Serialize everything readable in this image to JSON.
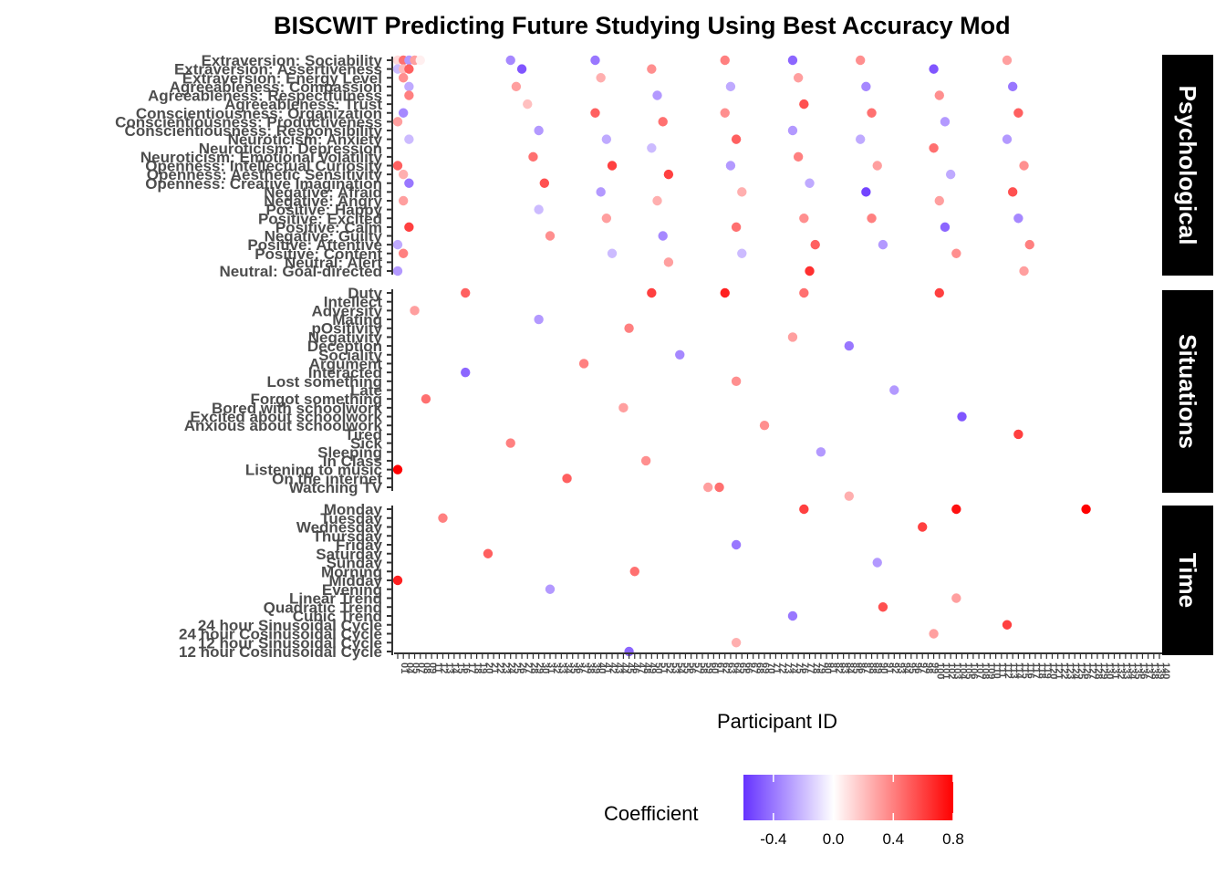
{
  "chart_data": {
    "type": "scatter",
    "title": "BISCWIT Predicting Future Studying Using Best Accuracy Mod",
    "xlabel": "Participant ID",
    "legend": {
      "title": "Coefficient",
      "ticks": [
        -0.4,
        0.0,
        0.4,
        0.8
      ],
      "range": [
        -0.6,
        0.8
      ],
      "low_color": "#6633ff",
      "mid_color": "#ffffff",
      "high_color": "#ff0000"
    },
    "x_tick_labels": [
      "01",
      "04",
      "05",
      "07",
      "08",
      "09",
      "11",
      "12",
      "13",
      "14",
      "15",
      "16",
      "17",
      "18",
      "19",
      "20",
      "21",
      "22",
      "23",
      "24",
      "25",
      "26",
      "27",
      "28",
      "29",
      "30",
      "31",
      "32",
      "33",
      "34",
      "35",
      "36",
      "37",
      "38",
      "39",
      "40",
      "41",
      "42",
      "43",
      "44",
      "45",
      "46",
      "47",
      "48",
      "49",
      "50",
      "51",
      "52",
      "53",
      "54",
      "55",
      "56",
      "57",
      "58",
      "59",
      "60",
      "61",
      "62",
      "63",
      "64",
      "65",
      "66",
      "67",
      "68",
      "69",
      "70",
      "71",
      "72",
      "73",
      "74",
      "75",
      "76",
      "77",
      "78",
      "79",
      "80",
      "81",
      "82",
      "83",
      "84",
      "85",
      "86",
      "87",
      "88",
      "89",
      "90",
      "91",
      "92",
      "93",
      "94",
      "95",
      "96",
      "97",
      "98",
      "99",
      "100",
      "101",
      "102",
      "103",
      "104",
      "105",
      "106",
      "107",
      "108",
      "109",
      "110",
      "111",
      "112",
      "113",
      "114",
      "115",
      "116",
      "117",
      "118",
      "119",
      "120",
      "121",
      "122",
      "123",
      "124",
      "125",
      "126",
      "127",
      "128",
      "129",
      "130",
      "131",
      "132",
      "133",
      "134",
      "135",
      "136",
      "137",
      "138",
      "139",
      "140"
    ],
    "facets": [
      {
        "name": "Psychological",
        "rows": [
          "Extraversion: Sociability",
          "Extraversion: Assertiveness",
          "Extraversion: Energy Level",
          "Agreeableness: Compassion",
          "Agreeableness: Respectfulness",
          "Agreeableness: Trust",
          "Conscientiousness: Organization",
          "Conscientiousness: Productiveness",
          "Conscientiousness: Responsibility",
          "Neuroticism: Anxiety",
          "Neuroticism: Depression",
          "Neuroticism: Emotional Volatility",
          "Openness: Intellectual Curiosity",
          "Openness: Aesthetic Sensitivity",
          "Openness: Creative Imagination",
          "Negative: Afraid",
          "Negative: Angry",
          "Positive: Happy",
          "Positive: Excited",
          "Positive: Calm",
          "Negative: Guilty",
          "Positive: Attentive",
          "Positive: Content",
          "Neutral: Alert",
          "Neutral: Goal-directed"
        ]
      },
      {
        "name": "Situations",
        "rows": [
          "Duty",
          "Intellect",
          "Adversity",
          "Mating",
          "pOsitivity",
          "Negativity",
          "Deception",
          "Sociality",
          "Argument",
          "Interacted",
          "Lost something",
          "Late",
          "Forgot something",
          "Bored with schoolwork",
          "Excited about schoolwork",
          "Anxious about schoolwork",
          "Tired",
          "Sick",
          "Sleeping",
          "In Class",
          "Listening to music",
          "On the internet",
          "Watching TV"
        ]
      },
      {
        "name": "Time",
        "rows": [
          "Monday",
          "Tuesday",
          "Wednesday",
          "Thursday",
          "Friday",
          "Saturday",
          "Sunday",
          "Morning",
          "Midday",
          "Evening",
          "Linear Trend",
          "Quadratic Trend",
          "Cubic Trend",
          "24 hour Sinusoidal Cycle",
          "24 hour Cosinusoidal Cycle",
          "12 hour Sinusoidal Cycle",
          "12 hour Cosinusoidal Cycle"
        ]
      }
    ],
    "points": [
      [
        0,
        0,
        0,
        0.12
      ],
      [
        0,
        0,
        1,
        0.45
      ],
      [
        0,
        0,
        2,
        -0.3
      ],
      [
        0,
        0,
        3,
        0.3
      ],
      [
        0,
        0,
        4,
        0.05
      ],
      [
        0,
        1,
        0,
        -0.2
      ],
      [
        0,
        1,
        1,
        0.22
      ],
      [
        0,
        1,
        2,
        0.5
      ],
      [
        0,
        2,
        1,
        0.35
      ],
      [
        0,
        3,
        2,
        -0.25
      ],
      [
        0,
        4,
        2,
        0.4
      ],
      [
        0,
        6,
        1,
        -0.35
      ],
      [
        0,
        7,
        0,
        0.3
      ],
      [
        0,
        9,
        2,
        -0.2
      ],
      [
        0,
        12,
        0,
        0.5
      ],
      [
        0,
        13,
        1,
        0.25
      ],
      [
        0,
        14,
        2,
        -0.4
      ],
      [
        0,
        16,
        1,
        0.3
      ],
      [
        0,
        19,
        2,
        0.6
      ],
      [
        0,
        21,
        0,
        -0.25
      ],
      [
        0,
        22,
        1,
        0.4
      ],
      [
        0,
        24,
        0,
        -0.3
      ],
      [
        0,
        0,
        20,
        -0.35
      ],
      [
        0,
        1,
        22,
        -0.5
      ],
      [
        0,
        3,
        21,
        0.3
      ],
      [
        0,
        5,
        23,
        0.2
      ],
      [
        0,
        8,
        25,
        -0.3
      ],
      [
        0,
        11,
        24,
        0.45
      ],
      [
        0,
        14,
        26,
        0.55
      ],
      [
        0,
        17,
        25,
        -0.2
      ],
      [
        0,
        20,
        27,
        0.35
      ],
      [
        0,
        0,
        35,
        -0.4
      ],
      [
        0,
        2,
        36,
        0.25
      ],
      [
        0,
        6,
        35,
        0.5
      ],
      [
        0,
        9,
        37,
        -0.25
      ],
      [
        0,
        12,
        38,
        0.6
      ],
      [
        0,
        15,
        36,
        -0.3
      ],
      [
        0,
        18,
        37,
        0.3
      ],
      [
        0,
        22,
        38,
        -0.2
      ],
      [
        0,
        1,
        45,
        0.35
      ],
      [
        0,
        4,
        46,
        -0.3
      ],
      [
        0,
        7,
        47,
        0.45
      ],
      [
        0,
        10,
        45,
        -0.2
      ],
      [
        0,
        13,
        48,
        0.6
      ],
      [
        0,
        16,
        46,
        0.25
      ],
      [
        0,
        20,
        47,
        -0.35
      ],
      [
        0,
        23,
        48,
        0.3
      ],
      [
        0,
        0,
        58,
        0.4
      ],
      [
        0,
        3,
        59,
        -0.25
      ],
      [
        0,
        6,
        58,
        0.35
      ],
      [
        0,
        9,
        60,
        0.5
      ],
      [
        0,
        12,
        59,
        -0.3
      ],
      [
        0,
        15,
        61,
        0.25
      ],
      [
        0,
        19,
        60,
        0.45
      ],
      [
        0,
        22,
        61,
        -0.2
      ],
      [
        0,
        0,
        70,
        -0.45
      ],
      [
        0,
        2,
        71,
        0.3
      ],
      [
        0,
        5,
        72,
        0.55
      ],
      [
        0,
        8,
        70,
        -0.3
      ],
      [
        0,
        11,
        71,
        0.4
      ],
      [
        0,
        14,
        73,
        -0.25
      ],
      [
        0,
        18,
        72,
        0.35
      ],
      [
        0,
        21,
        74,
        0.5
      ],
      [
        0,
        24,
        73,
        0.65
      ],
      [
        0,
        0,
        82,
        0.35
      ],
      [
        0,
        3,
        83,
        -0.35
      ],
      [
        0,
        6,
        84,
        0.45
      ],
      [
        0,
        9,
        82,
        -0.25
      ],
      [
        0,
        12,
        85,
        0.3
      ],
      [
        0,
        15,
        83,
        -0.55
      ],
      [
        0,
        18,
        84,
        0.4
      ],
      [
        0,
        21,
        86,
        -0.3
      ],
      [
        0,
        1,
        95,
        -0.5
      ],
      [
        0,
        4,
        96,
        0.35
      ],
      [
        0,
        7,
        97,
        -0.3
      ],
      [
        0,
        10,
        95,
        0.45
      ],
      [
        0,
        13,
        98,
        -0.25
      ],
      [
        0,
        16,
        96,
        0.3
      ],
      [
        0,
        19,
        97,
        -0.45
      ],
      [
        0,
        22,
        99,
        0.35
      ],
      [
        0,
        0,
        108,
        0.3
      ],
      [
        0,
        3,
        109,
        -0.4
      ],
      [
        0,
        6,
        110,
        0.5
      ],
      [
        0,
        9,
        108,
        -0.3
      ],
      [
        0,
        12,
        111,
        0.35
      ],
      [
        0,
        15,
        109,
        0.55
      ],
      [
        0,
        18,
        110,
        -0.35
      ],
      [
        0,
        21,
        112,
        0.4
      ],
      [
        0,
        24,
        111,
        0.3
      ],
      [
        1,
        0,
        12,
        0.5
      ],
      [
        1,
        0,
        45,
        0.6
      ],
      [
        1,
        0,
        58,
        0.7
      ],
      [
        1,
        0,
        72,
        0.45
      ],
      [
        1,
        0,
        96,
        0.6
      ],
      [
        1,
        2,
        3,
        0.3
      ],
      [
        1,
        3,
        25,
        -0.3
      ],
      [
        1,
        4,
        41,
        0.4
      ],
      [
        1,
        5,
        70,
        0.3
      ],
      [
        1,
        6,
        80,
        -0.4
      ],
      [
        1,
        7,
        50,
        -0.35
      ],
      [
        1,
        8,
        33,
        0.4
      ],
      [
        1,
        9,
        12,
        -0.45
      ],
      [
        1,
        10,
        60,
        0.35
      ],
      [
        1,
        11,
        88,
        -0.3
      ],
      [
        1,
        12,
        5,
        0.45
      ],
      [
        1,
        13,
        40,
        0.3
      ],
      [
        1,
        14,
        100,
        -0.5
      ],
      [
        1,
        15,
        65,
        0.35
      ],
      [
        1,
        16,
        110,
        0.6
      ],
      [
        1,
        17,
        20,
        0.4
      ],
      [
        1,
        18,
        75,
        -0.3
      ],
      [
        1,
        19,
        44,
        0.35
      ],
      [
        1,
        20,
        0,
        0.9
      ],
      [
        1,
        21,
        30,
        0.5
      ],
      [
        1,
        22,
        55,
        0.3
      ],
      [
        1,
        22,
        57,
        0.45
      ],
      [
        1,
        23,
        80,
        0.25
      ],
      [
        2,
        0,
        72,
        0.6
      ],
      [
        2,
        0,
        99,
        0.75
      ],
      [
        2,
        0,
        122,
        0.85
      ],
      [
        2,
        1,
        8,
        0.4
      ],
      [
        2,
        2,
        93,
        0.6
      ],
      [
        2,
        4,
        60,
        -0.4
      ],
      [
        2,
        5,
        16,
        0.5
      ],
      [
        2,
        6,
        85,
        -0.3
      ],
      [
        2,
        7,
        42,
        0.45
      ],
      [
        2,
        8,
        0,
        0.7
      ],
      [
        2,
        9,
        27,
        -0.3
      ],
      [
        2,
        10,
        99,
        0.3
      ],
      [
        2,
        11,
        86,
        0.55
      ],
      [
        2,
        12,
        70,
        -0.4
      ],
      [
        2,
        13,
        108,
        0.6
      ],
      [
        2,
        14,
        95,
        0.3
      ],
      [
        2,
        15,
        60,
        0.25
      ],
      [
        2,
        16,
        41,
        -0.45
      ]
    ]
  }
}
